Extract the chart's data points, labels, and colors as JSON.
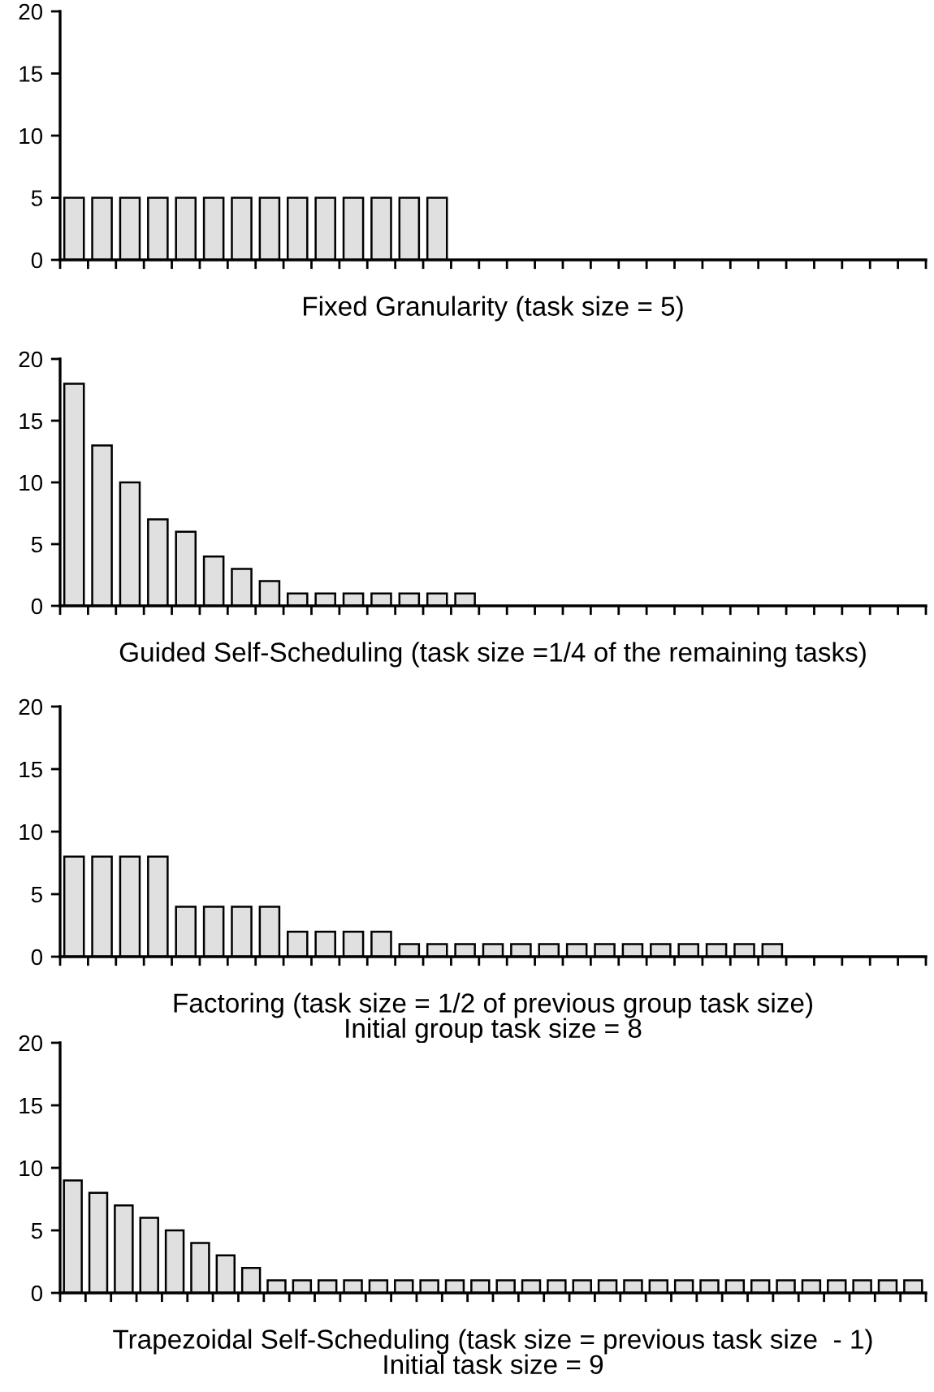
{
  "chart_data": [
    {
      "type": "bar",
      "xlabel": "Fixed Granularity (task size = 5)",
      "categories": [
        null,
        null,
        null,
        null,
        null,
        null,
        null,
        null,
        null,
        null,
        null,
        null,
        null,
        null,
        null,
        null,
        null,
        null,
        null,
        null,
        null,
        null,
        null,
        null,
        null,
        null,
        null,
        null,
        null,
        null,
        null
      ],
      "values": [
        5,
        5,
        5,
        5,
        5,
        5,
        5,
        5,
        5,
        5,
        5,
        5,
        5,
        5,
        null,
        null,
        null,
        null,
        null,
        null,
        null,
        null,
        null,
        null,
        null,
        null,
        null,
        null,
        null,
        null,
        null
      ],
      "color": "#e0e0e0",
      "ylim": [
        0,
        20
      ],
      "yticks": [
        0,
        5,
        10,
        15,
        20
      ],
      "grid": false,
      "legend": false
    },
    {
      "type": "bar",
      "xlabel": "Guided Self-Scheduling (task size =1/4 of the remaining tasks)",
      "categories": [
        null,
        null,
        null,
        null,
        null,
        null,
        null,
        null,
        null,
        null,
        null,
        null,
        null,
        null,
        null,
        null,
        null,
        null,
        null,
        null,
        null,
        null,
        null,
        null,
        null,
        null,
        null,
        null,
        null,
        null,
        null
      ],
      "values": [
        18,
        13,
        10,
        7,
        6,
        4,
        3,
        2,
        1,
        1,
        1,
        1,
        1,
        1,
        1,
        null,
        null,
        null,
        null,
        null,
        null,
        null,
        null,
        null,
        null,
        null,
        null,
        null,
        null,
        null,
        null
      ],
      "color": "#e0e0e0",
      "ylim": [
        0,
        20
      ],
      "yticks": [
        0,
        5,
        10,
        15,
        20
      ],
      "grid": false,
      "legend": false
    },
    {
      "type": "bar",
      "xlabel": "Factoring (task size = 1/2 of previous group task size)\nInitial group task size = 8",
      "categories": [
        null,
        null,
        null,
        null,
        null,
        null,
        null,
        null,
        null,
        null,
        null,
        null,
        null,
        null,
        null,
        null,
        null,
        null,
        null,
        null,
        null,
        null,
        null,
        null,
        null,
        null,
        null,
        null,
        null,
        null,
        null
      ],
      "values": [
        8,
        8,
        8,
        8,
        4,
        4,
        4,
        4,
        2,
        2,
        2,
        2,
        1,
        1,
        1,
        1,
        1,
        1,
        1,
        1,
        1,
        1,
        1,
        1,
        1,
        1,
        null,
        null,
        null,
        null,
        null
      ],
      "color": "#e0e0e0",
      "ylim": [
        0,
        20
      ],
      "yticks": [
        0,
        5,
        10,
        15,
        20
      ],
      "grid": false,
      "legend": false
    },
    {
      "type": "bar",
      "xlabel": "Trapezoidal Self-Scheduling (task size = previous task size  - 1)\nInitial task size = 9",
      "categories": [
        null,
        null,
        null,
        null,
        null,
        null,
        null,
        null,
        null,
        null,
        null,
        null,
        null,
        null,
        null,
        null,
        null,
        null,
        null,
        null,
        null,
        null,
        null,
        null,
        null,
        null,
        null,
        null,
        null,
        null,
        null,
        null,
        null,
        null
      ],
      "values": [
        9,
        8,
        7,
        6,
        5,
        4,
        3,
        2,
        1,
        1,
        1,
        1,
        1,
        1,
        1,
        1,
        1,
        1,
        1,
        1,
        1,
        1,
        1,
        1,
        1,
        1,
        1,
        1,
        1,
        1,
        1,
        1,
        1,
        1
      ],
      "color": "#e0e0e0",
      "ylim": [
        0,
        20
      ],
      "yticks": [
        0,
        5,
        10,
        15,
        20
      ],
      "grid": false,
      "legend": false
    }
  ]
}
